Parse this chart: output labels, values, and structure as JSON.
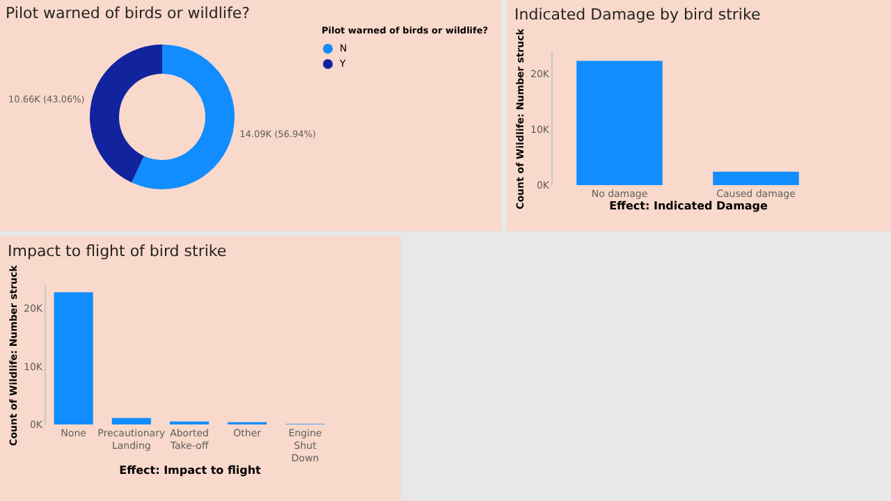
{
  "chart_data": [
    {
      "type": "donut",
      "title": "Pilot warned of birds or wildlife?",
      "legend_title": "Pilot warned of birds or wildlife?",
      "legend": "right",
      "categories": [
        "N",
        "Y"
      ],
      "values": [
        14090,
        10660
      ],
      "colors": [
        "#118dff",
        "#12239e"
      ],
      "value_labels": [
        "14.09K (56.94%)",
        "10.66K (43.06%)"
      ]
    },
    {
      "type": "bar",
      "title": "Indicated Damage by bird strike",
      "xlabel": "Effect: Indicated Damage",
      "ylabel": "Count of Wildlife: Number struck",
      "categories": [
        "No damage",
        "Caused damage"
      ],
      "values": [
        22300,
        2400
      ],
      "color": "#118dff",
      "ylim": [
        0,
        24000
      ],
      "yticks": [
        {
          "value": 0,
          "label": "0K"
        },
        {
          "value": 10000,
          "label": "10K"
        },
        {
          "value": 20000,
          "label": "20K"
        }
      ]
    },
    {
      "type": "bar",
      "title": "Impact to flight of bird strike",
      "xlabel": "Effect: Impact to flight",
      "ylabel": "Count of Wildlife: Number struck",
      "categories": [
        "None",
        "Precautionary Landing",
        "Aborted Take-off",
        "Other",
        "Engine Shut Down"
      ],
      "values": [
        22800,
        1100,
        500,
        400,
        100
      ],
      "color": "#118dff",
      "ylim": [
        0,
        24000
      ],
      "yticks": [
        {
          "value": 0,
          "label": "0K"
        },
        {
          "value": 10000,
          "label": "10K"
        },
        {
          "value": 20000,
          "label": "20K"
        }
      ]
    }
  ]
}
